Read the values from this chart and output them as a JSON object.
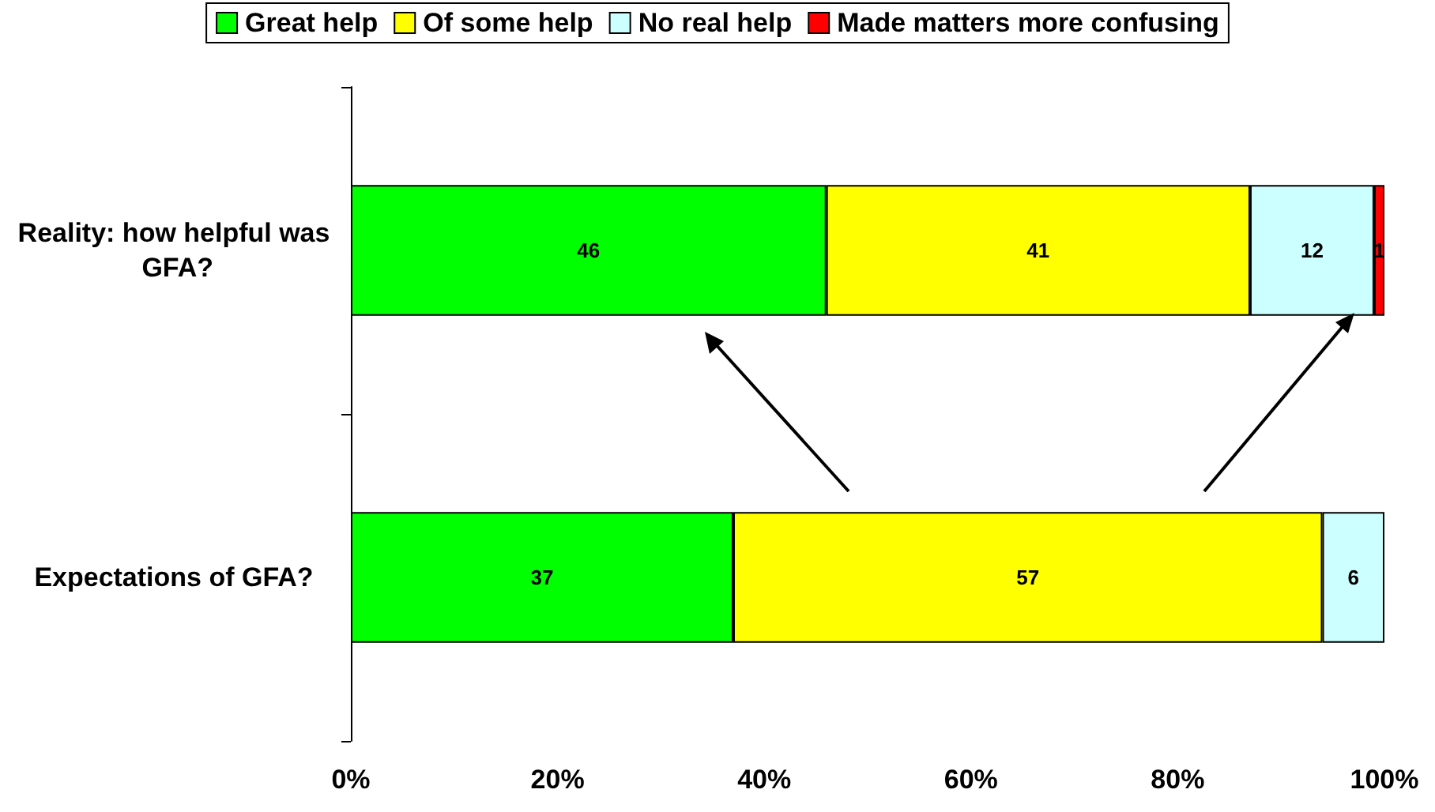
{
  "chart_data": {
    "type": "bar",
    "orientation": "horizontal",
    "stacked": true,
    "data_labels": true,
    "grid": false,
    "legend": "top",
    "categories": [
      "Reality: how helpful was GFA?",
      "Expectations of GFA?"
    ],
    "series": [
      {
        "name": "Great help",
        "color": "#00ff00",
        "values": [
          46,
          37
        ]
      },
      {
        "name": "Of some help",
        "color": "#ffff00",
        "values": [
          41,
          57
        ]
      },
      {
        "name": "No real help",
        "color": "#ccffff",
        "values": [
          12,
          6
        ]
      },
      {
        "name": "Made matters more confusing",
        "color": "#ff0000",
        "values": [
          1,
          null
        ]
      }
    ],
    "xlim": [
      0,
      100
    ],
    "xticks": [
      {
        "value": 0,
        "label": "0%"
      },
      {
        "value": 20,
        "label": "20%"
      },
      {
        "value": 40,
        "label": "40%"
      },
      {
        "value": 60,
        "label": "60%"
      },
      {
        "value": 80,
        "label": "80%"
      },
      {
        "value": 100,
        "label": "100%"
      }
    ]
  }
}
